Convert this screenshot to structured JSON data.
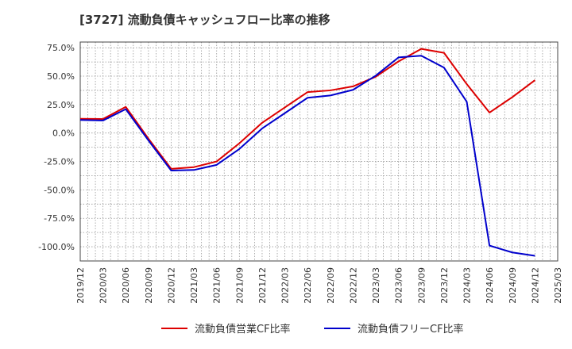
{
  "chart_data": {
    "type": "line",
    "title": "[3727]  流動負債キャッシュフロー比率の推移",
    "xlabel": "",
    "ylabel": "",
    "ylim": [
      -112.5,
      80
    ],
    "grid": true,
    "legend_position": "bottom",
    "y_ticks": [
      75,
      50,
      25,
      0,
      -25,
      -50,
      -75,
      -100
    ],
    "y_tick_labels": [
      "75.0%",
      "50.0%",
      "25.0%",
      "0.0%",
      "-25.0%",
      "-50.0%",
      "-75.0%",
      "-100.0%"
    ],
    "x_tick_labels": [
      "2019/12",
      "2020/03",
      "2020/06",
      "2020/09",
      "2020/12",
      "2021/03",
      "2021/06",
      "2021/09",
      "2021/12",
      "2022/03",
      "2022/06",
      "2022/09",
      "2022/12",
      "2023/03",
      "2023/06",
      "2023/09",
      "2023/12",
      "2024/03",
      "2024/06",
      "2024/09",
      "2024/12",
      "2025/03"
    ],
    "series": [
      {
        "name": "流動負債営業CF比率",
        "color": "#dd0000",
        "x_index": [
          0,
          1,
          2,
          3,
          4,
          5,
          6,
          7,
          8,
          9,
          10,
          11,
          12,
          13,
          14,
          15,
          16,
          17,
          18,
          19,
          20
        ],
        "values": [
          12.5,
          12.3,
          23.0,
          -5.0,
          -31.5,
          -30.0,
          -25.0,
          -9.0,
          9.0,
          22.5,
          36.0,
          37.5,
          41.0,
          49.5,
          63.0,
          74.0,
          70.5,
          43.0,
          18.0,
          31.5,
          46.5
        ]
      },
      {
        "name": "流動負債フリーCF比率",
        "color": "#0000cc",
        "x_index": [
          0,
          1,
          2,
          3,
          4,
          5,
          6,
          7,
          8,
          9,
          10,
          11,
          12,
          13,
          14,
          15,
          16,
          17,
          18,
          19,
          20
        ],
        "values": [
          11.5,
          11.0,
          21.0,
          -6.5,
          -33.0,
          -32.5,
          -28.0,
          -14.0,
          4.0,
          17.5,
          31.0,
          33.0,
          38.0,
          50.5,
          66.5,
          68.0,
          57.5,
          27.5,
          -99.0,
          -105.0,
          -108.0
        ]
      }
    ]
  }
}
